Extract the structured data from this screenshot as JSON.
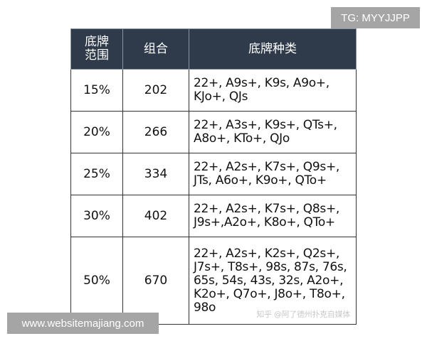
{
  "badges": {
    "tg": "TG: MYYJJPP",
    "site": "www.websitemajiang.com"
  },
  "table": {
    "headers": [
      "底牌\n范围",
      "组合",
      "底牌种类"
    ],
    "rows": [
      {
        "range": "15%",
        "combos": "202",
        "hands": "22+, A9s+, K9s, A9o+, KJo+, QJs"
      },
      {
        "range": "20%",
        "combos": "266",
        "hands": "22+, A3s+, K9s+, QTs+, A8o+, KTo+, QJo"
      },
      {
        "range": "25%",
        "combos": "334",
        "hands": "22+, A2s+, K7s+, Q9s+, JTs, A6o+, K9o+, QTo+"
      },
      {
        "range": "30%",
        "combos": "402",
        "hands": "22+, A2s+, K7s+, Q8s+, J9s+,A2o+, K8o+, QTo+"
      },
      {
        "range": "50%",
        "combos": "670",
        "hands": "22+, A2s+, K2s+, Q2s+, J7s+, T8s+, 98s, 87s, 76s, 65s, 54s, 43s, 32s, A2o+, K2o+, Q7o+, J8o+, T8o+, 98o"
      }
    ],
    "watermark": "知乎 @阿了德州扑克自媒体"
  }
}
